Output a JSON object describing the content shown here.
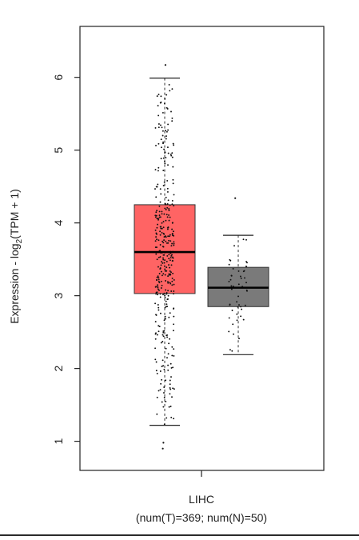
{
  "chart_data": {
    "type": "box",
    "ylabel": "Expression - log2(TPM + 1)",
    "ylim": [
      0.6,
      6.7
    ],
    "yticks": [
      1,
      2,
      3,
      4,
      5,
      6
    ],
    "category": "LIHC",
    "sample_counts": "(num(T)=369; num(N)=50)",
    "grid": false,
    "boxes": [
      {
        "group": "T",
        "n": 369,
        "color": "#FF6464",
        "whisker_low": 1.22,
        "q1": 3.03,
        "median": 3.6,
        "q3": 4.25,
        "whisker_high": 5.99,
        "outliers": [
          6.17,
          0.98,
          0.9
        ]
      },
      {
        "group": "N",
        "n": 50,
        "color": "#7A7A7A",
        "whisker_low": 2.19,
        "q1": 2.85,
        "median": 3.11,
        "q3": 3.39,
        "whisker_high": 3.83,
        "outliers": [
          4.34
        ]
      }
    ]
  },
  "labels": {
    "category": "LIHC",
    "counts": "(num(T)=369; num(N)=50)",
    "ylabel_prefix": "Expression - log",
    "ylabel_sub": "2",
    "ylabel_suffix": "(TPM + 1)"
  }
}
